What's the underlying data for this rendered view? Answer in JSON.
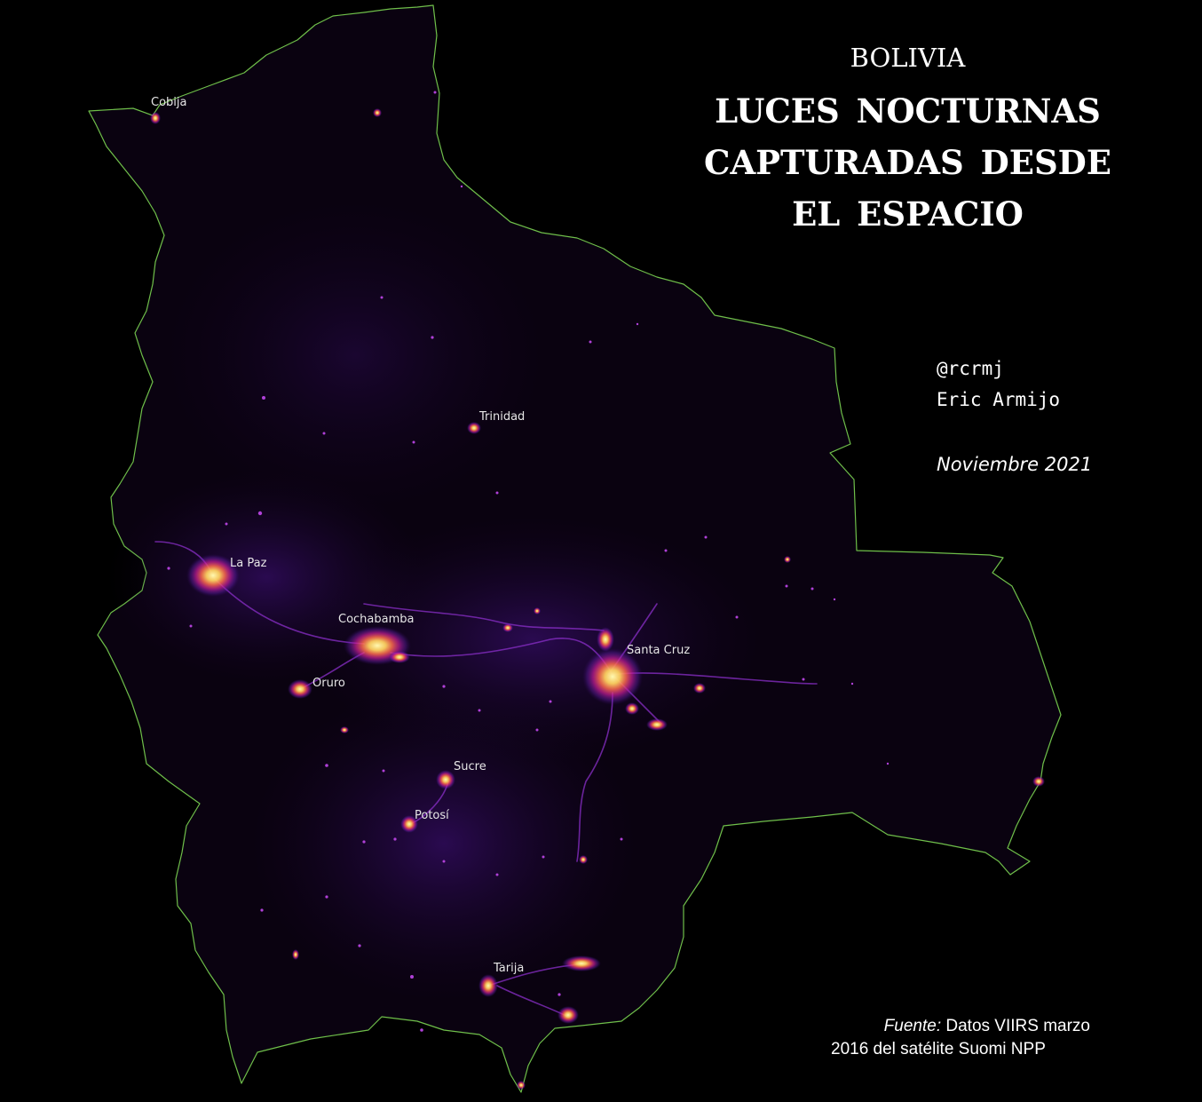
{
  "title": {
    "kicker": "BOLIVIA",
    "lines": [
      "LUCES NOCTURNAS",
      "CAPTURADAS DESDE",
      "EL ESPACIO"
    ]
  },
  "credits": {
    "handle": "@rcrmj",
    "author": "Eric Armijo",
    "date": "Noviembre 2021"
  },
  "source": {
    "prefix": "Fuente:",
    "line1": "Datos VIIRS marzo",
    "line2": "2016 del satélite Suomi NPP"
  },
  "cities": [
    {
      "id": "cobija",
      "name": "Cobija"
    },
    {
      "id": "trinidad",
      "name": "Trinidad"
    },
    {
      "id": "la-paz",
      "name": "La Paz"
    },
    {
      "id": "cochabamba",
      "name": "Cochabamba"
    },
    {
      "id": "santa-cruz",
      "name": "Santa Cruz"
    },
    {
      "id": "oruro",
      "name": "Oruro"
    },
    {
      "id": "sucre",
      "name": "Sucre"
    },
    {
      "id": "potosi",
      "name": "Potosí"
    },
    {
      "id": "tarija",
      "name": "Tarija"
    }
  ],
  "colors": {
    "background": "#000000",
    "border": "#6fbf4a",
    "glow_core": "#fff3a0",
    "glow_mid": "#ff8a3d",
    "glow_outer": "#c81e96",
    "glow_far": "#6a1fb3"
  }
}
